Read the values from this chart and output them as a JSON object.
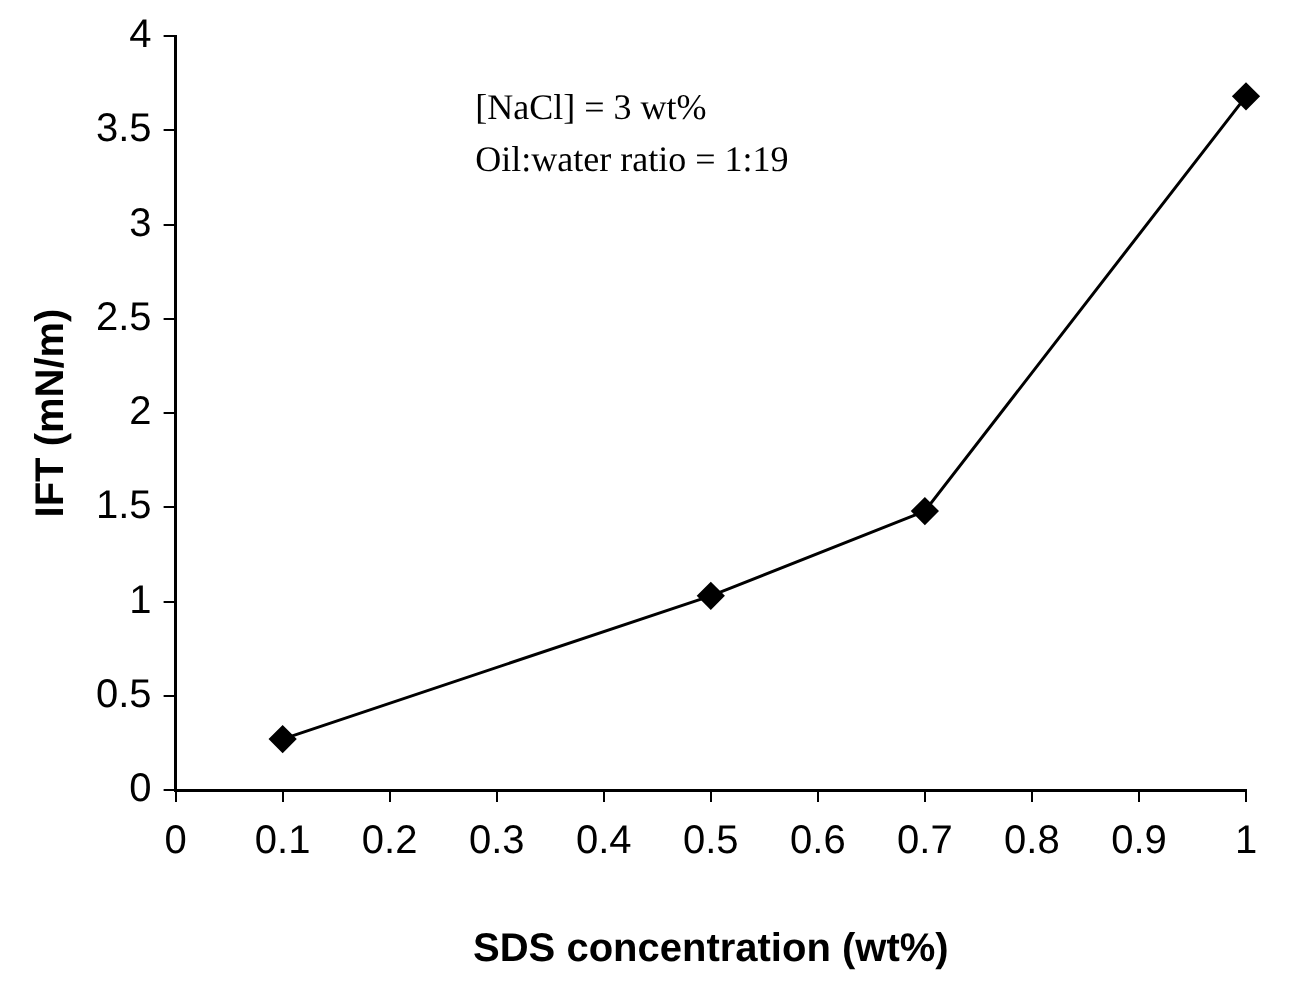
{
  "chart_data": {
    "type": "line",
    "xlabel": "SDS concentration (wt%)",
    "ylabel": "IFT (mN/m)",
    "x": [
      0.1,
      0.5,
      0.7,
      1
    ],
    "series": [
      {
        "color": "#000000",
        "values": [
          0.27,
          1.03,
          1.48,
          3.68
        ]
      }
    ],
    "xlim": [
      0,
      1
    ],
    "xticks": [
      0,
      0.1,
      0.2,
      0.3,
      0.4,
      0.5,
      0.6,
      0.7,
      0.8,
      0.9,
      1
    ],
    "ylim": [
      0,
      4
    ],
    "yticks": [
      0,
      0.5,
      1,
      1.5,
      2,
      2.5,
      3,
      3.5,
      4
    ],
    "marker": "diamond",
    "line_style": "solid",
    "grid": false,
    "legend": false,
    "annotations": [
      "[NaCl] = 3 wt%",
      "Oil:water ratio = 1:19"
    ]
  }
}
